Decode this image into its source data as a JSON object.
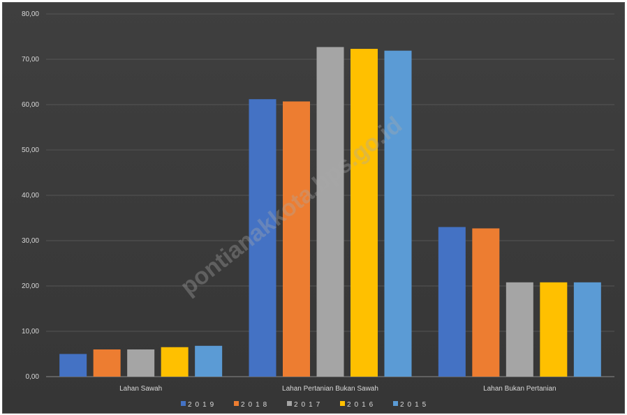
{
  "chart_data": {
    "type": "bar",
    "categories": [
      "Lahan Sawah",
      "Lahan Pertanian Bukan Sawah",
      "Lahan Bukan Pertanian"
    ],
    "series": [
      {
        "name": "2019",
        "color": "#4472c4",
        "values": [
          5.0,
          61.2,
          33.0
        ]
      },
      {
        "name": "2018",
        "color": "#ed7d31",
        "values": [
          6.0,
          60.7,
          32.7
        ]
      },
      {
        "name": "2017",
        "color": "#a5a5a5",
        "values": [
          6.0,
          72.7,
          20.8
        ]
      },
      {
        "name": "2016",
        "color": "#ffc000",
        "values": [
          6.5,
          72.3,
          20.8
        ]
      },
      {
        "name": "2015",
        "color": "#5b9bd5",
        "values": [
          6.8,
          71.9,
          20.8
        ]
      }
    ],
    "ylim": [
      0,
      80
    ],
    "yticks": [
      0,
      10,
      20,
      30,
      40,
      50,
      60,
      70,
      80
    ],
    "ytick_labels": [
      "0,00",
      "10,00",
      "20,00",
      "30,00",
      "40,00",
      "50,00",
      "60,00",
      "70,00",
      "80,00"
    ],
    "grid": true,
    "legend_position": "bottom",
    "watermark": "pontianakkota.bps.go.id",
    "xlabel": "",
    "ylabel": "",
    "title": ""
  }
}
